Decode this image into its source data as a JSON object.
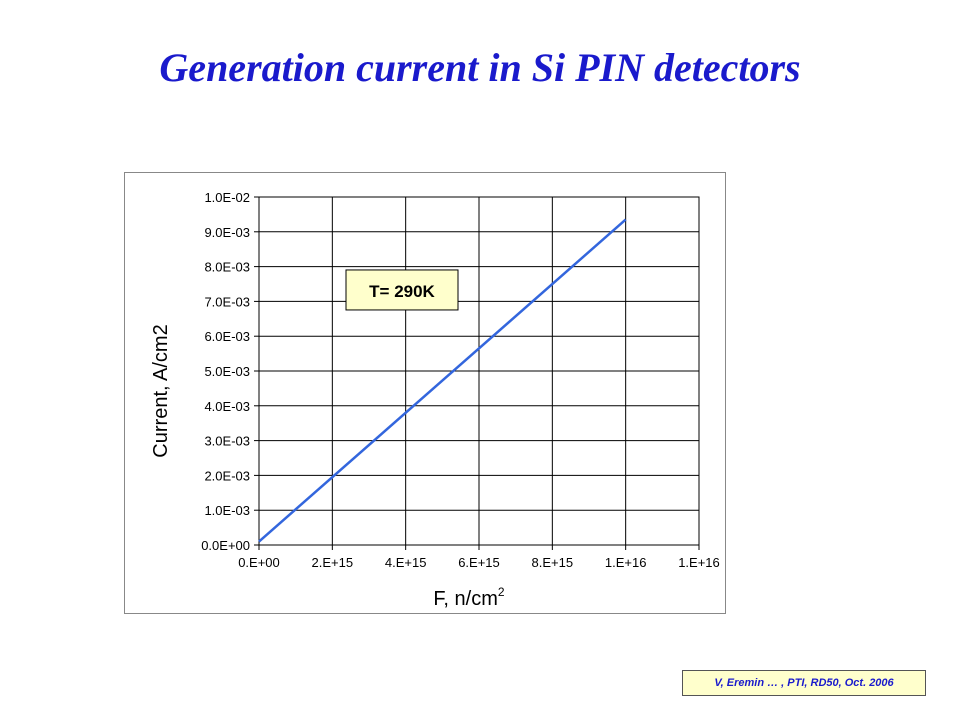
{
  "slide": {
    "title": "Generation current in Si PIN detectors",
    "citation": "V, Eremin … , PTI, RD50, Oct. 2006"
  },
  "chart_data": {
    "type": "line",
    "xlabel": "F, n/cm",
    "xlabel_superscript": "2",
    "ylabel": "Current, A/cm2",
    "xlim": [
      0,
      1.2e+16
    ],
    "ylim": [
      0,
      0.01
    ],
    "x_tick_labels": [
      "0.E+00",
      "2.E+15",
      "4.E+15",
      "6.E+15",
      "8.E+15",
      "1.E+16",
      "1.E+16"
    ],
    "y_tick_labels": [
      "0.0E+00",
      "1.0E-03",
      "2.0E-03",
      "3.0E-03",
      "4.0E-03",
      "5.0E-03",
      "6.0E-03",
      "7.0E-03",
      "8.0E-03",
      "9.0E-03",
      "1.0E-02"
    ],
    "grid": true,
    "series": [
      {
        "color": "#3366dd",
        "x": [
          0,
          1e+16
        ],
        "y": [
          0.0001,
          0.00935
        ]
      }
    ],
    "annotations": [
      {
        "text": "T= 290K",
        "x": 3900000000000000.0,
        "y": 0.0073
      }
    ]
  }
}
